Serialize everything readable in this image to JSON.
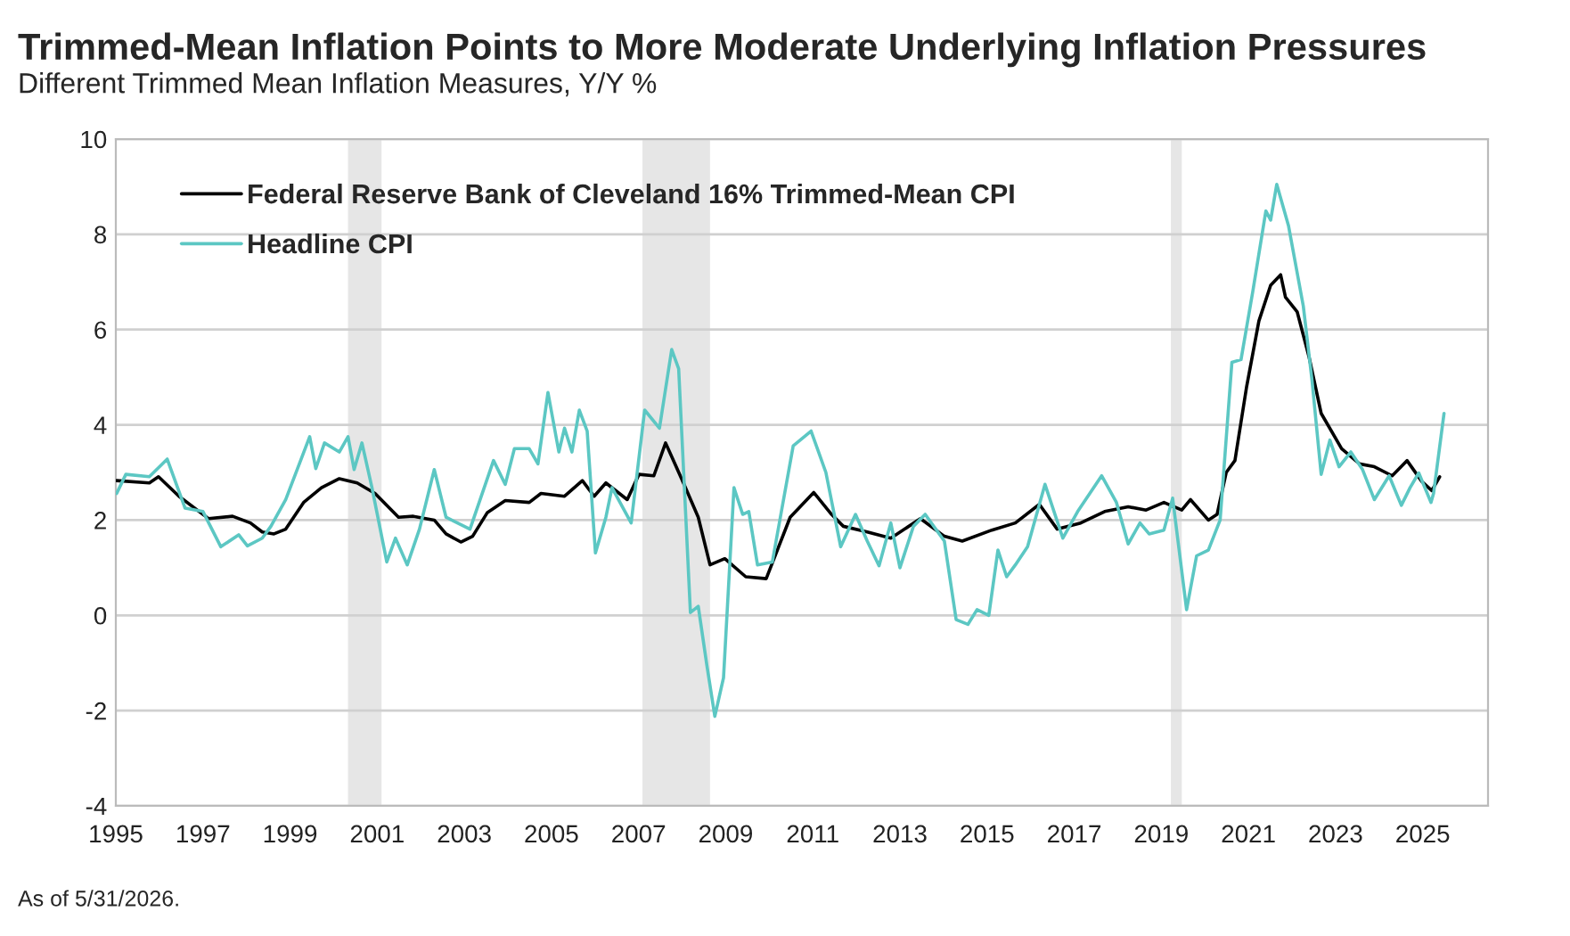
{
  "chart_data": {
    "type": "line",
    "title": "Trimmed-Mean Inflation Points to More Moderate Underlying Inflation Pressures",
    "subtitle": "Different Trimmed Mean Inflation Measures, Y/Y %",
    "annotations": [
      "As of 5/31/2026."
    ],
    "series": [
      {
        "name": "Federal Reserve Bank of Cleveland 16% Trimmed-Mean CPI",
        "color": "#000000",
        "x": [
          1995.02,
          1995.77,
          1995.98,
          1996.45,
          1997.13,
          1997.68,
          1998.09,
          1998.36,
          1998.63,
          1998.9,
          1999.31,
          1999.72,
          2000.13,
          2000.54,
          2000.95,
          2001.49,
          2001.83,
          2002.31,
          2002.58,
          2002.92,
          2003.19,
          2003.53,
          2003.94,
          2004.49,
          2004.76,
          2005.3,
          2005.71,
          2005.98,
          2006.25,
          2006.74,
          2007.01,
          2007.35,
          2007.62,
          2008.03,
          2008.37,
          2008.64,
          2008.98,
          2009.46,
          2009.93,
          2010.48,
          2011.02,
          2011.43,
          2011.7,
          2012.25,
          2012.79,
          2013.47,
          2014.02,
          2014.43,
          2015.11,
          2015.65,
          2016.2,
          2016.61,
          2017.15,
          2017.7,
          2018.24,
          2018.65,
          2019.06,
          2019.47,
          2019.67,
          2020.08,
          2020.28,
          2020.49,
          2020.69,
          2020.96,
          2021.24,
          2021.51,
          2021.74,
          2021.85,
          2022.12,
          2022.39,
          2022.67,
          2023.14,
          2023.55,
          2023.89,
          2024.3,
          2024.64,
          2024.98,
          2025.21,
          2025.39
        ],
        "values": [
          2.83,
          2.78,
          2.91,
          2.5,
          2.03,
          2.08,
          1.94,
          1.75,
          1.71,
          1.81,
          2.37,
          2.68,
          2.87,
          2.78,
          2.56,
          2.06,
          2.08,
          2.0,
          1.71,
          1.54,
          1.66,
          2.16,
          2.41,
          2.37,
          2.56,
          2.5,
          2.83,
          2.5,
          2.78,
          2.43,
          2.96,
          2.93,
          3.62,
          2.78,
          2.06,
          1.06,
          1.19,
          0.81,
          0.77,
          2.06,
          2.58,
          2.12,
          1.87,
          1.75,
          1.62,
          2.03,
          1.66,
          1.56,
          1.79,
          1.94,
          2.33,
          1.81,
          1.94,
          2.18,
          2.28,
          2.21,
          2.37,
          2.21,
          2.43,
          2.0,
          2.12,
          3.0,
          3.25,
          4.81,
          6.18,
          6.93,
          7.15,
          6.68,
          6.37,
          5.43,
          4.24,
          3.5,
          3.18,
          3.12,
          2.93,
          3.25,
          2.81,
          2.62,
          2.91
        ]
      },
      {
        "name": "Headline CPI",
        "color": "#5cc7c3",
        "x": [
          1995.02,
          1995.23,
          1995.77,
          1996.18,
          1996.59,
          1997.0,
          1997.41,
          1997.82,
          1998.02,
          1998.36,
          1998.56,
          1998.9,
          1999.45,
          1999.59,
          1999.79,
          2000.13,
          2000.33,
          2000.47,
          2000.65,
          2000.88,
          2001.22,
          2001.42,
          2001.69,
          2001.97,
          2002.31,
          2002.58,
          2003.13,
          2003.67,
          2003.94,
          2004.15,
          2004.49,
          2004.69,
          2004.92,
          2005.17,
          2005.3,
          2005.47,
          2005.64,
          2005.82,
          2006.01,
          2006.25,
          2006.39,
          2006.83,
          2007.14,
          2007.48,
          2007.76,
          2007.92,
          2008.19,
          2008.37,
          2008.57,
          2008.75,
          2008.95,
          2009.19,
          2009.39,
          2009.53,
          2009.73,
          2010.07,
          2010.55,
          2010.96,
          2011.3,
          2011.64,
          2011.98,
          2012.25,
          2012.52,
          2012.79,
          2013.0,
          2013.31,
          2013.58,
          2014.02,
          2014.29,
          2014.56,
          2014.77,
          2015.04,
          2015.25,
          2015.45,
          2015.65,
          2015.93,
          2016.33,
          2016.74,
          2017.08,
          2017.63,
          2017.97,
          2018.24,
          2018.51,
          2018.72,
          2019.06,
          2019.26,
          2019.58,
          2019.81,
          2020.08,
          2020.35,
          2020.62,
          2020.83,
          2021.1,
          2021.4,
          2021.51,
          2021.65,
          2021.92,
          2022.26,
          2022.46,
          2022.67,
          2022.87,
          2023.08,
          2023.35,
          2023.62,
          2023.89,
          2024.23,
          2024.51,
          2024.71,
          2024.91,
          2025.19,
          2025.25,
          2025.49
        ],
        "values": [
          2.56,
          2.96,
          2.91,
          3.28,
          2.25,
          2.18,
          1.44,
          1.69,
          1.46,
          1.62,
          1.87,
          2.43,
          3.75,
          3.08,
          3.62,
          3.43,
          3.75,
          3.06,
          3.62,
          2.68,
          1.12,
          1.62,
          1.06,
          1.81,
          3.06,
          2.06,
          1.81,
          3.25,
          2.75,
          3.5,
          3.5,
          3.18,
          4.68,
          3.43,
          3.93,
          3.43,
          4.31,
          3.87,
          1.31,
          2.06,
          2.68,
          1.94,
          4.31,
          3.93,
          5.58,
          5.18,
          0.06,
          0.19,
          -1.06,
          -2.12,
          -1.31,
          2.68,
          2.12,
          2.18,
          1.06,
          1.12,
          3.56,
          3.87,
          3.0,
          1.44,
          2.12,
          1.56,
          1.04,
          1.94,
          1.0,
          1.87,
          2.12,
          1.56,
          -0.09,
          -0.19,
          0.12,
          0.0,
          1.37,
          0.81,
          1.06,
          1.44,
          2.75,
          1.62,
          2.18,
          2.93,
          2.37,
          1.5,
          1.94,
          1.71,
          1.79,
          2.46,
          0.12,
          1.25,
          1.37,
          2.0,
          5.31,
          5.37,
          6.8,
          8.49,
          8.3,
          9.05,
          8.18,
          6.49,
          4.93,
          2.96,
          3.68,
          3.12,
          3.43,
          3.06,
          2.43,
          2.93,
          2.31,
          2.68,
          2.99,
          2.37,
          2.56,
          4.24
        ]
      }
    ],
    "bands": [
      {
        "axis": "x",
        "from": 2000.33,
        "to": 2001.1,
        "color": "#e6e6e6"
      },
      {
        "axis": "x",
        "from": 2007.09,
        "to": 2008.64,
        "color": "#e6e6e6"
      },
      {
        "axis": "x",
        "from": 2019.22,
        "to": 2019.47,
        "color": "#e6e6e6"
      }
    ],
    "xlim": [
      1995,
      2026.5
    ],
    "xticks": [
      1995,
      1997,
      1999,
      2001,
      2003,
      2005,
      2007,
      2009,
      2011,
      2013,
      2015,
      2017,
      2019,
      2021,
      2023,
      2025
    ],
    "ylim": [
      -4,
      10
    ],
    "yticks": [
      -4,
      -2,
      0,
      2,
      4,
      6,
      8,
      10
    ],
    "grid": "y",
    "legend": "top left",
    "line_style": "solid",
    "marker": "none"
  }
}
